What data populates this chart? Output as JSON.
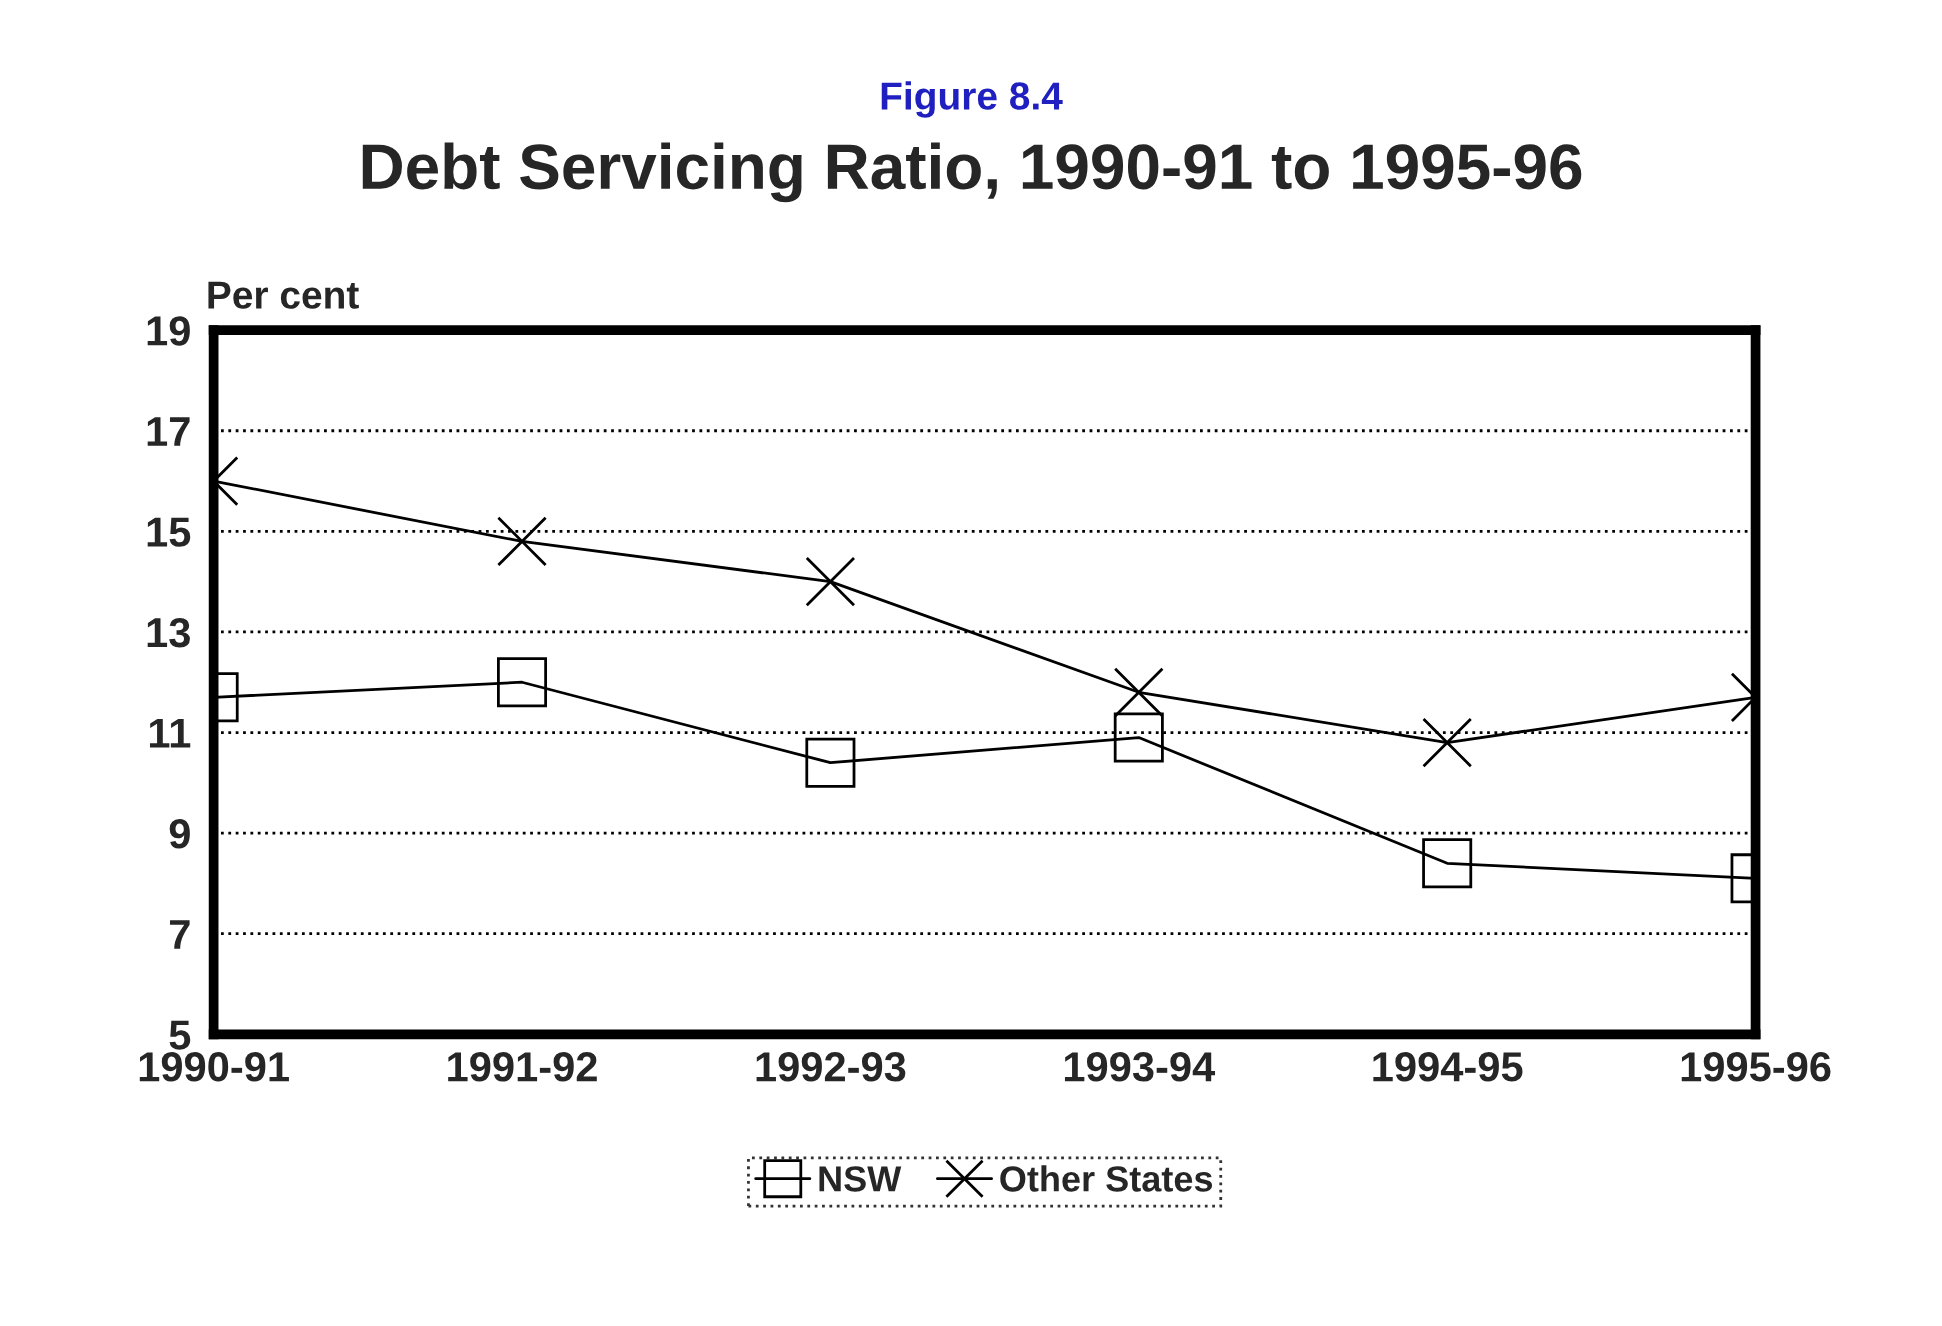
{
  "chart_data": {
    "type": "line",
    "subtitle": "Figure 8.4",
    "title": "Debt Servicing Ratio, 1990-91 to 1995-96",
    "ylabel": "Per cent",
    "categories": [
      "1990-91",
      "1991-92",
      "1992-93",
      "1993-94",
      "1994-95",
      "1995-96"
    ],
    "series": [
      {
        "name": "NSW",
        "color": "#000000",
        "marker": "square",
        "values": [
          11.7,
          12.0,
          10.4,
          10.9,
          8.4,
          8.1
        ]
      },
      {
        "name": "Other States",
        "color": "#000000",
        "marker": "cross",
        "values": [
          16.0,
          14.8,
          14.0,
          11.8,
          10.8,
          11.7
        ]
      }
    ],
    "ylim": [
      5,
      19
    ],
    "yticks": [
      5,
      7,
      9,
      11,
      13,
      15,
      17,
      19
    ],
    "grid": "y",
    "legend": "bottom",
    "line_style": "solid"
  }
}
